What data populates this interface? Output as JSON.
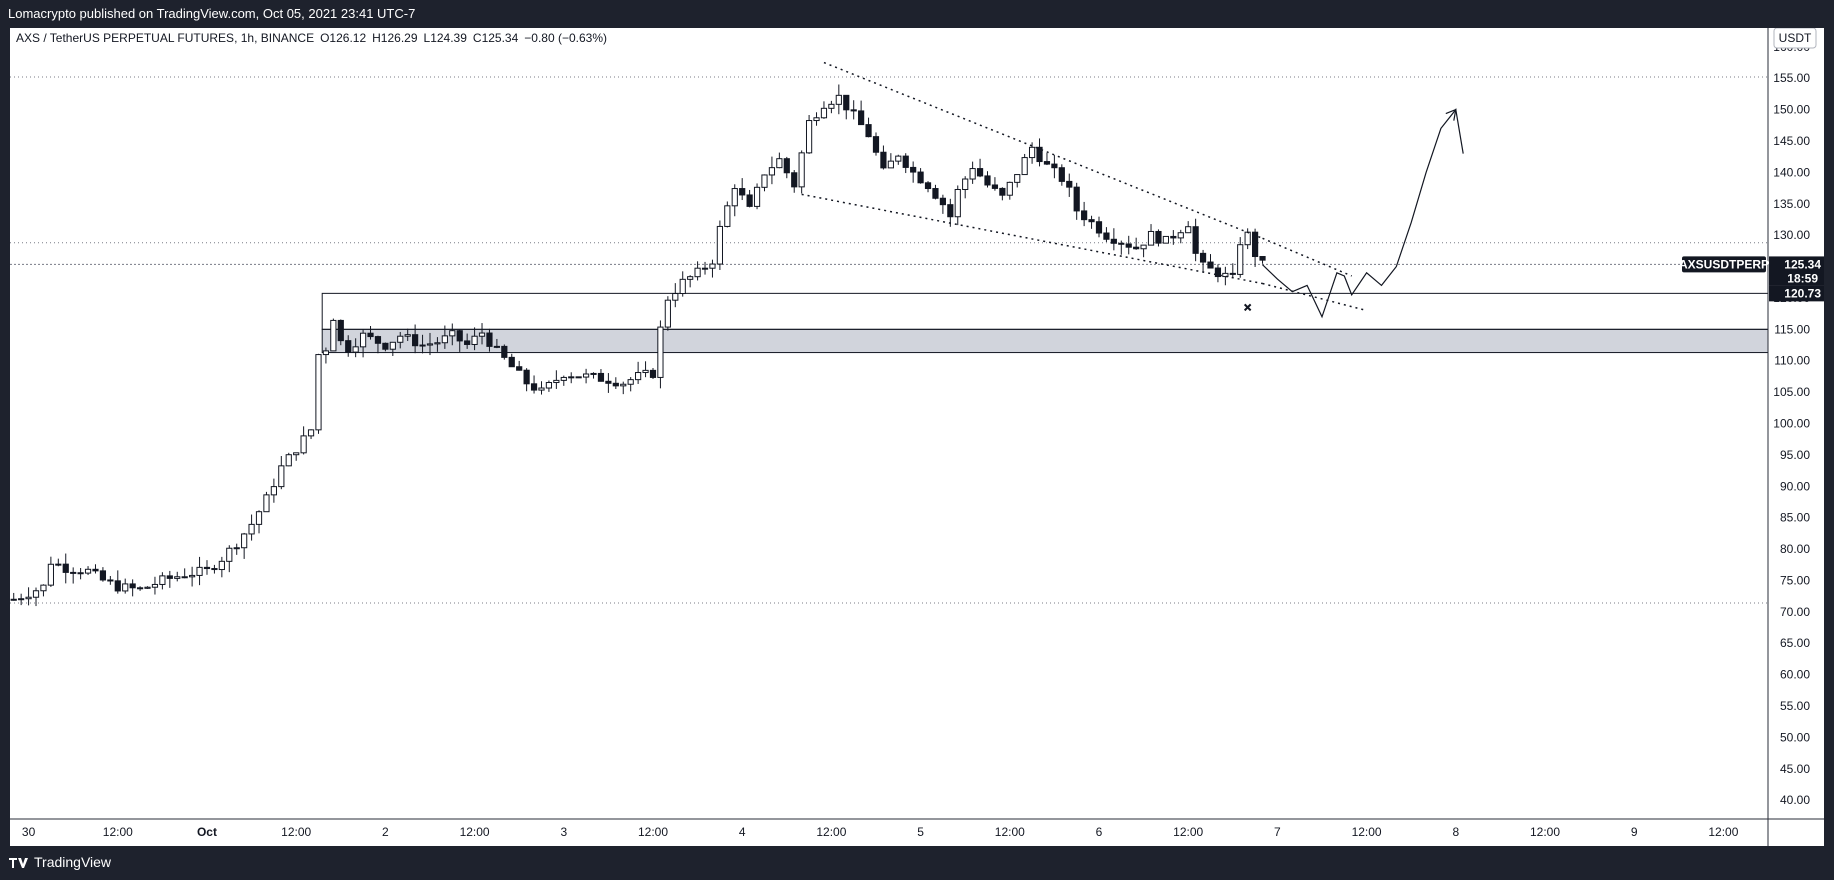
{
  "header": {
    "published": "Lomacrypto published on TradingView.com, Oct 05, 2021 23:41 UTC-7"
  },
  "footer": {
    "brand": "TradingView"
  },
  "chart_data": {
    "type": "candlestick",
    "title": "AXS / TetherUS PERPETUAL FUTURES, 1h, BINANCE",
    "ohlc": {
      "open": "O126.12",
      "high": "H126.29",
      "low": "L124.39",
      "close": "C125.34",
      "change": "−0.80 (−0.63%)"
    },
    "currency": "USDT",
    "symbol_tag": "AXSUSDTPERP",
    "last_price": "125.34",
    "countdown": "18:59",
    "level_tag": "120.73",
    "ylim": [
      37,
      163
    ],
    "y_ticks": [
      "160.00",
      "155.00",
      "150.00",
      "145.00",
      "140.00",
      "135.00",
      "130.00",
      "125.00",
      "120.00",
      "115.00",
      "110.00",
      "105.00",
      "100.00",
      "95.00",
      "90.00",
      "85.00",
      "80.00",
      "75.00",
      "70.00",
      "65.00",
      "60.00",
      "55.00",
      "50.00",
      "45.00",
      "40.00"
    ],
    "x_ticks": [
      {
        "t": 0,
        "label": "30"
      },
      {
        "t": 12,
        "label": "12:00"
      },
      {
        "t": 24,
        "label": "Oct"
      },
      {
        "t": 36,
        "label": "12:00"
      },
      {
        "t": 48,
        "label": "2"
      },
      {
        "t": 60,
        "label": "12:00"
      },
      {
        "t": 72,
        "label": "3"
      },
      {
        "t": 84,
        "label": "12:00"
      },
      {
        "t": 96,
        "label": "4"
      },
      {
        "t": 108,
        "label": "12:00"
      },
      {
        "t": 120,
        "label": "5"
      },
      {
        "t": 132,
        "label": "12:00"
      },
      {
        "t": 144,
        "label": "6"
      },
      {
        "t": 156,
        "label": "12:00"
      },
      {
        "t": 168,
        "label": "7"
      },
      {
        "t": 180,
        "label": "12:00"
      },
      {
        "t": 192,
        "label": "8"
      },
      {
        "t": 204,
        "label": "12:00"
      },
      {
        "t": 216,
        "label": "9"
      },
      {
        "t": 228,
        "label": "12:00"
      }
    ],
    "x_range": [
      -2.5,
      234
    ],
    "close_path": [
      [
        -2,
        72
      ],
      [
        0,
        73
      ],
      [
        2,
        74
      ],
      [
        3,
        78
      ],
      [
        5,
        77
      ],
      [
        8,
        76.5
      ],
      [
        10,
        75
      ],
      [
        12,
        74
      ],
      [
        15,
        73.5
      ],
      [
        18,
        75
      ],
      [
        21,
        76
      ],
      [
        24,
        76.5
      ],
      [
        26,
        78.5
      ],
      [
        28,
        81
      ],
      [
        30,
        84
      ],
      [
        32,
        88
      ],
      [
        34,
        93
      ],
      [
        36,
        96
      ],
      [
        38,
        99
      ],
      [
        39,
        111
      ],
      [
        40,
        112
      ],
      [
        41,
        117
      ],
      [
        42,
        113
      ],
      [
        43,
        112
      ],
      [
        45,
        114
      ],
      [
        48,
        112.5
      ],
      [
        50,
        114
      ],
      [
        53,
        112.5
      ],
      [
        55,
        113
      ],
      [
        57,
        114
      ],
      [
        59,
        112.5
      ],
      [
        61,
        114.5
      ],
      [
        63,
        111.5
      ],
      [
        65,
        109
      ],
      [
        67,
        106.5
      ],
      [
        69,
        105
      ],
      [
        70,
        106
      ],
      [
        72,
        108
      ],
      [
        75,
        107.5
      ],
      [
        78,
        107
      ],
      [
        80,
        106.5
      ],
      [
        82,
        107.5
      ],
      [
        84,
        108
      ],
      [
        85,
        115
      ],
      [
        86,
        120
      ],
      [
        88,
        122.5
      ],
      [
        90,
        124
      ],
      [
        92,
        126
      ],
      [
        93,
        131
      ],
      [
        95,
        138
      ],
      [
        97,
        134
      ],
      [
        99,
        140
      ],
      [
        101,
        142
      ],
      [
        103,
        138
      ],
      [
        104,
        143
      ],
      [
        105,
        148
      ],
      [
        107,
        151
      ],
      [
        109,
        152
      ],
      [
        111,
        149
      ],
      [
        113,
        146
      ],
      [
        115,
        140
      ],
      [
        117,
        143
      ],
      [
        119,
        140
      ],
      [
        121,
        138
      ],
      [
        123,
        135
      ],
      [
        124,
        133
      ],
      [
        125,
        137
      ],
      [
        127,
        141
      ],
      [
        129,
        138
      ],
      [
        131,
        136
      ],
      [
        133,
        140
      ],
      [
        134,
        142
      ],
      [
        135,
        144
      ],
      [
        137,
        141
      ],
      [
        139,
        139
      ],
      [
        140,
        137
      ],
      [
        141,
        134
      ],
      [
        143,
        132
      ],
      [
        145,
        130
      ],
      [
        147,
        129
      ],
      [
        149,
        128
      ],
      [
        151,
        130
      ],
      [
        153,
        129
      ],
      [
        155,
        131
      ],
      [
        156,
        132
      ],
      [
        157,
        127
      ],
      [
        158,
        125
      ],
      [
        160,
        124
      ],
      [
        162,
        123
      ],
      [
        163,
        129
      ],
      [
        164,
        130
      ],
      [
        165,
        127
      ],
      [
        166,
        125.3
      ]
    ],
    "levels": [
      155.2,
      128.8,
      125.34,
      71.4
    ],
    "zones": [
      {
        "from_t": 39.5,
        "low": 111.3,
        "high": 115
      }
    ],
    "box": {
      "from_t": 39.5,
      "top": 120.73,
      "bottom": 115
    },
    "trendlines": [
      {
        "from": [
          107,
          157.5
        ],
        "to": [
          166,
          129.5
        ]
      },
      {
        "from": [
          166,
          129.5
        ],
        "to": [
          178,
          123.5
        ]
      },
      {
        "from": [
          104,
          136.5
        ],
        "to": [
          166,
          122.3
        ]
      },
      {
        "from": [
          166,
          122.3
        ],
        "to": [
          180,
          118
        ]
      }
    ],
    "projection": [
      [
        166,
        125.3
      ],
      [
        168,
        123
      ],
      [
        170,
        121
      ],
      [
        172,
        122
      ],
      [
        174,
        117
      ],
      [
        176,
        124
      ],
      [
        177,
        123.5
      ],
      [
        178,
        120.5
      ],
      [
        180,
        124
      ],
      [
        182,
        122
      ],
      [
        184,
        125
      ],
      [
        186,
        132
      ],
      [
        188,
        140
      ],
      [
        190,
        147
      ],
      [
        192,
        150
      ],
      [
        193,
        143
      ]
    ],
    "x_marker": [
      164,
      118.5
    ]
  }
}
